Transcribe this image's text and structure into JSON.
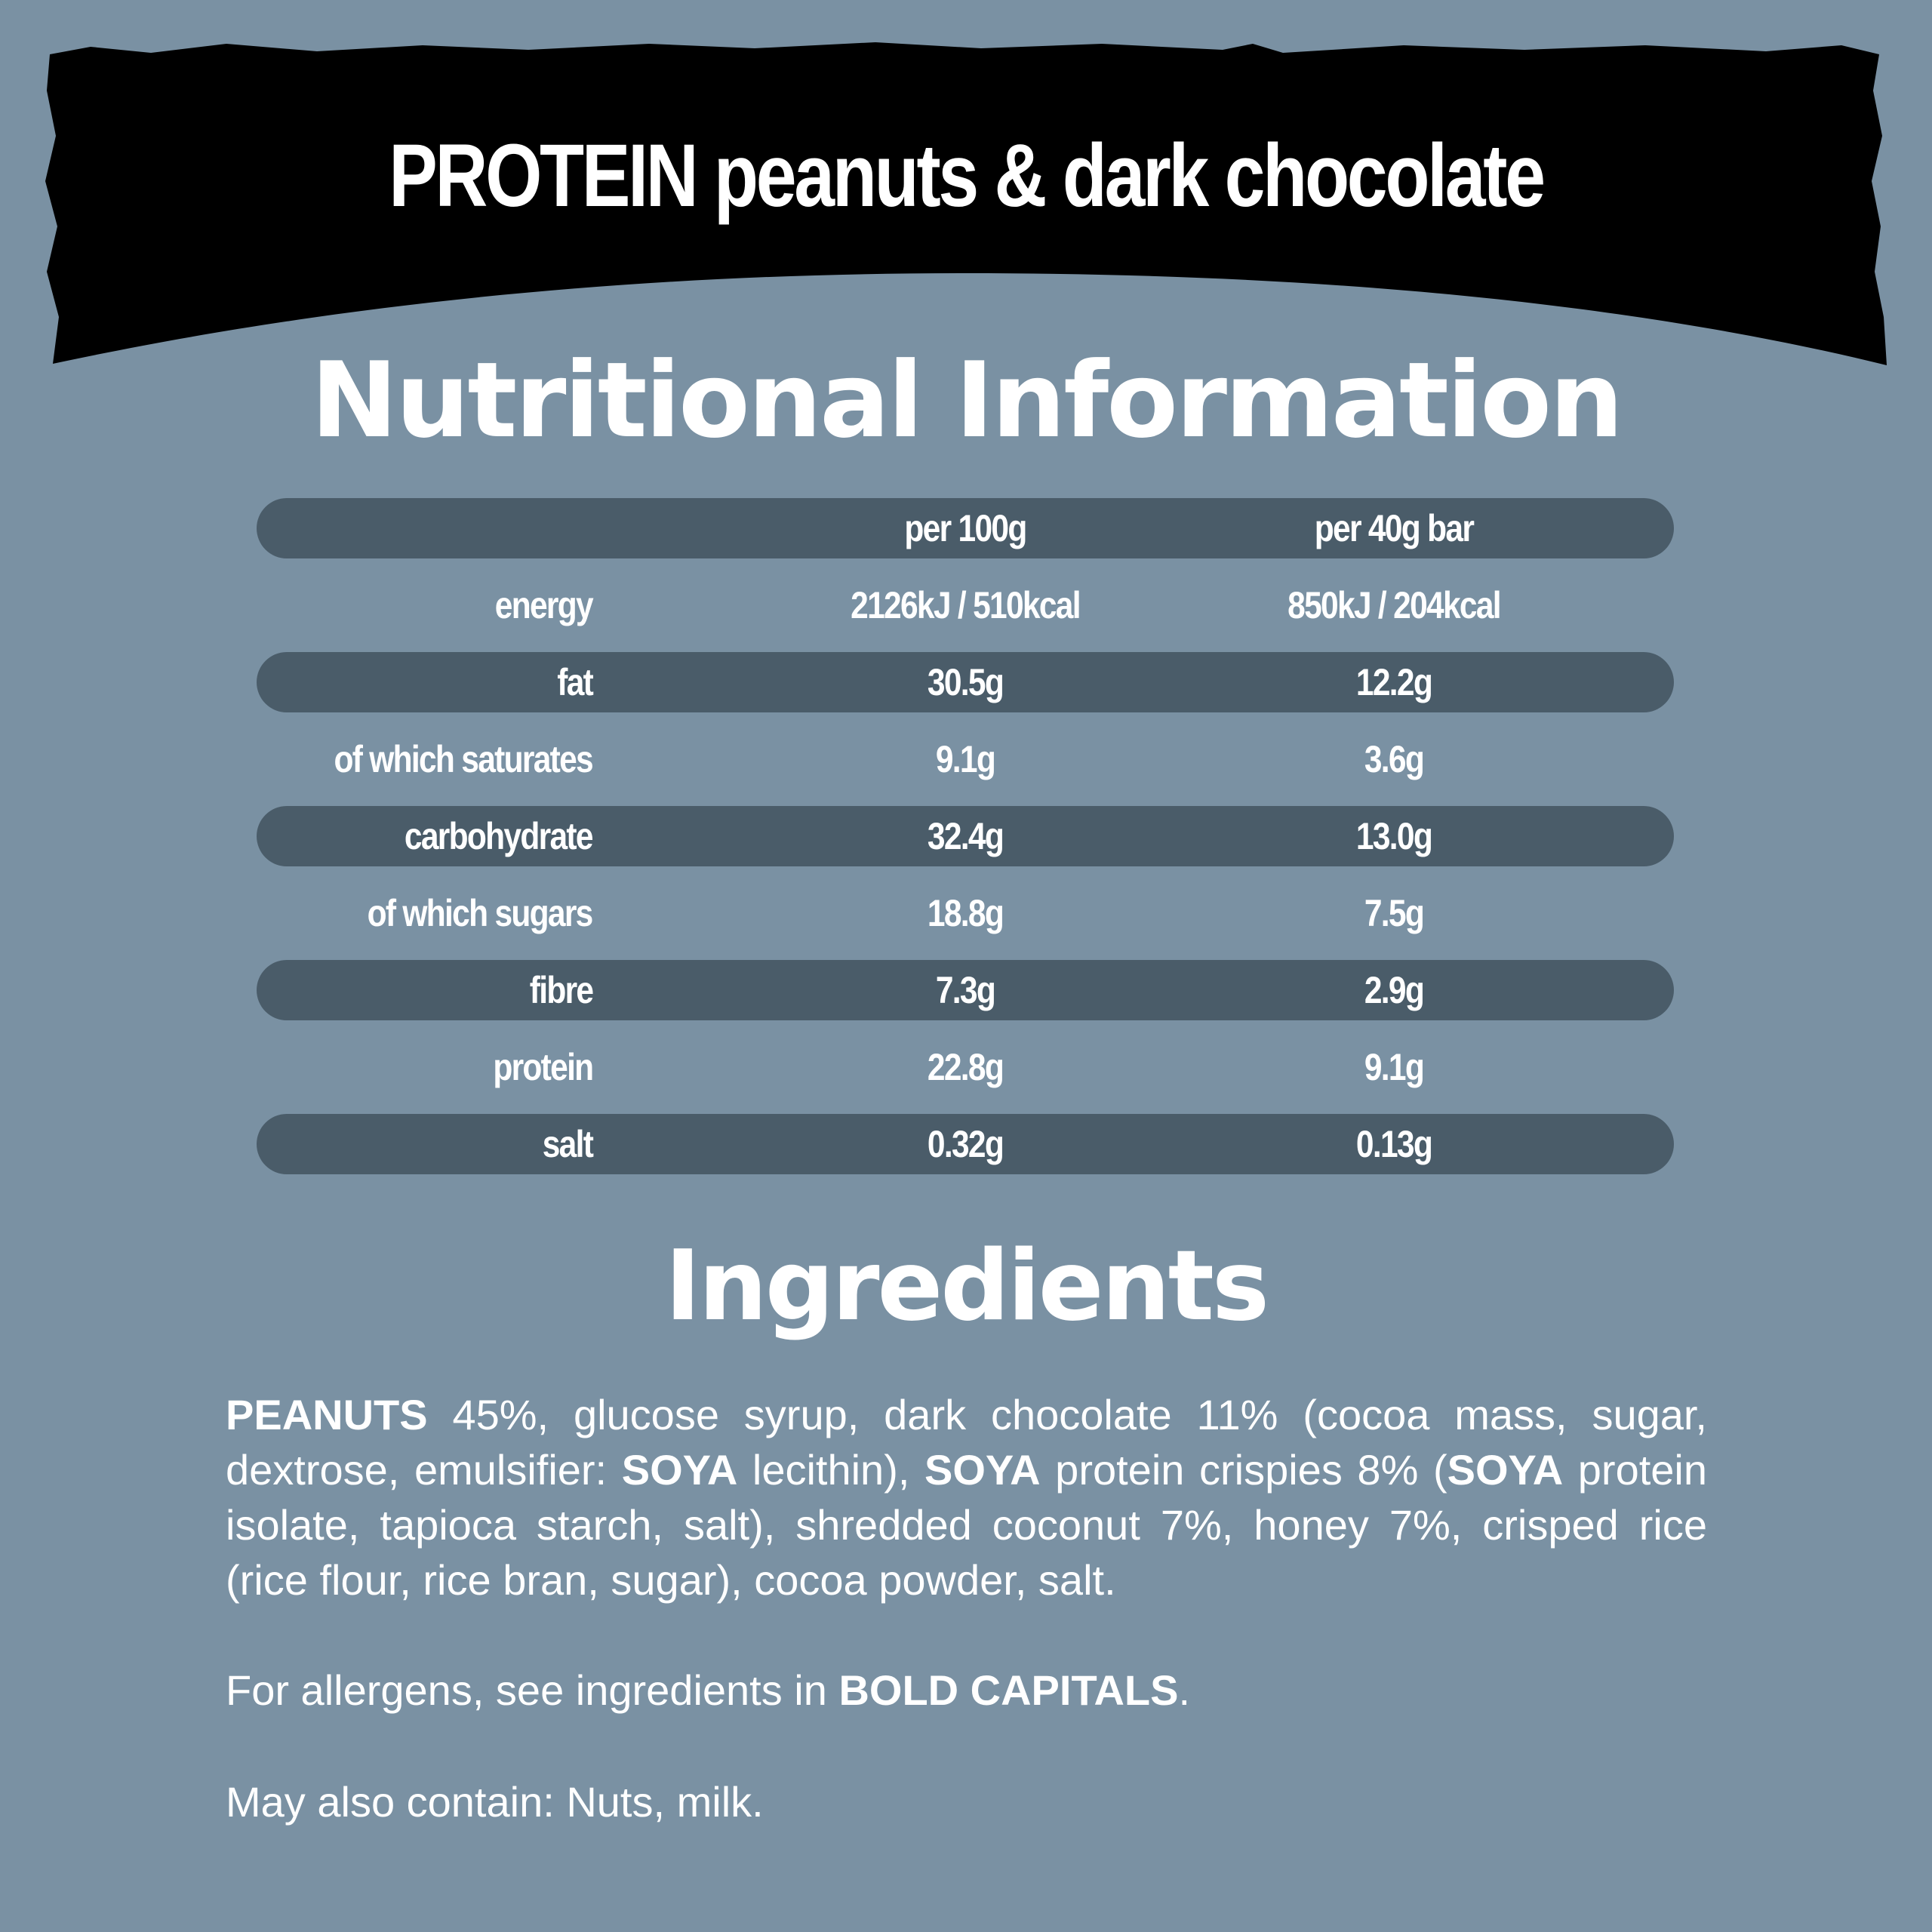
{
  "colors": {
    "background": "#7a91a3",
    "row_band": "#4a5c69",
    "banner": "#000000",
    "text": "#ffffff"
  },
  "banner": {
    "title": "PROTEIN peanuts & dark chocolate"
  },
  "nutrition": {
    "title": "Nutritional Information",
    "headers": [
      "",
      "per 100g",
      "per 40g bar"
    ],
    "rows": [
      {
        "label": "energy",
        "per100": "2126kJ / 510kcal",
        "perBar": "850kJ / 204kcal"
      },
      {
        "label": "fat",
        "per100": "30.5g",
        "perBar": "12.2g"
      },
      {
        "label": "of which saturates",
        "per100": "9.1g",
        "perBar": "3.6g"
      },
      {
        "label": "carbohydrate",
        "per100": "32.4g",
        "perBar": "13.0g"
      },
      {
        "label": "of which sugars",
        "per100": "18.8g",
        "perBar": "7.5g"
      },
      {
        "label": "fibre",
        "per100": "7.3g",
        "perBar": "2.9g"
      },
      {
        "label": "protein",
        "per100": "22.8g",
        "perBar": "9.1g"
      },
      {
        "label": "salt",
        "per100": "0.32g",
        "perBar": "0.13g"
      }
    ]
  },
  "ingredients": {
    "title": "Ingredients",
    "segments": [
      {
        "text": "PEANUTS",
        "bold": true
      },
      {
        "text": " 45%, glucose syrup, dark chocolate 11% (cocoa mass, sugar, dextrose, emulsifier: ",
        "bold": false
      },
      {
        "text": "SOYA",
        "bold": true
      },
      {
        "text": " lecithin), ",
        "bold": false
      },
      {
        "text": "SOYA",
        "bold": true
      },
      {
        "text": " protein crispies 8% (",
        "bold": false
      },
      {
        "text": "SOYA",
        "bold": true
      },
      {
        "text": " protein isolate, tapioca starch, salt), shredded coconut 7%, honey 7%, crisped rice (rice flour, rice bran, sugar), cocoa powder, salt.",
        "bold": false
      }
    ],
    "allergens_prefix": "For allergens, see ingredients in ",
    "allergens_bold": "BOLD CAPITALS",
    "allergens_suffix": ".",
    "may_contain": "May also contain: Nuts, milk."
  }
}
